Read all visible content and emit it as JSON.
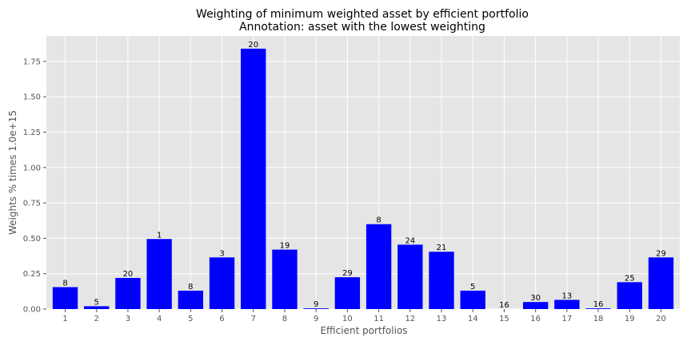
{
  "chart_data": {
    "type": "bar",
    "title": "Weighting of minimum weighted asset by efficient portfolio",
    "subtitle": "Annotation: asset with the lowest weighting",
    "xlabel": "Efficient portfolios",
    "ylabel": "Weights % times 1.0e+15",
    "categories": [
      "1",
      "2",
      "3",
      "4",
      "5",
      "6",
      "7",
      "8",
      "9",
      "10",
      "11",
      "12",
      "13",
      "14",
      "15",
      "16",
      "17",
      "18",
      "19",
      "20"
    ],
    "values": [
      0.155,
      0.02,
      0.22,
      0.495,
      0.13,
      0.365,
      1.84,
      0.42,
      0.005,
      0.225,
      0.6,
      0.455,
      0.405,
      0.13,
      0.0,
      0.05,
      0.065,
      0.005,
      0.19,
      0.365
    ],
    "annotations": [
      "8",
      "5",
      "20",
      "1",
      "8",
      "3",
      "20",
      "19",
      "9",
      "29",
      "8",
      "24",
      "21",
      "5",
      "16",
      "30",
      "13",
      "16",
      "25",
      "29"
    ],
    "yticks": [
      "0.00",
      "0.25",
      "0.50",
      "0.75",
      "1.00",
      "1.25",
      "1.50",
      "1.75"
    ],
    "ylim": [
      0,
      1.93
    ],
    "grid": true,
    "bar_color": "#0000ff",
    "background": "#e5e5e5"
  }
}
